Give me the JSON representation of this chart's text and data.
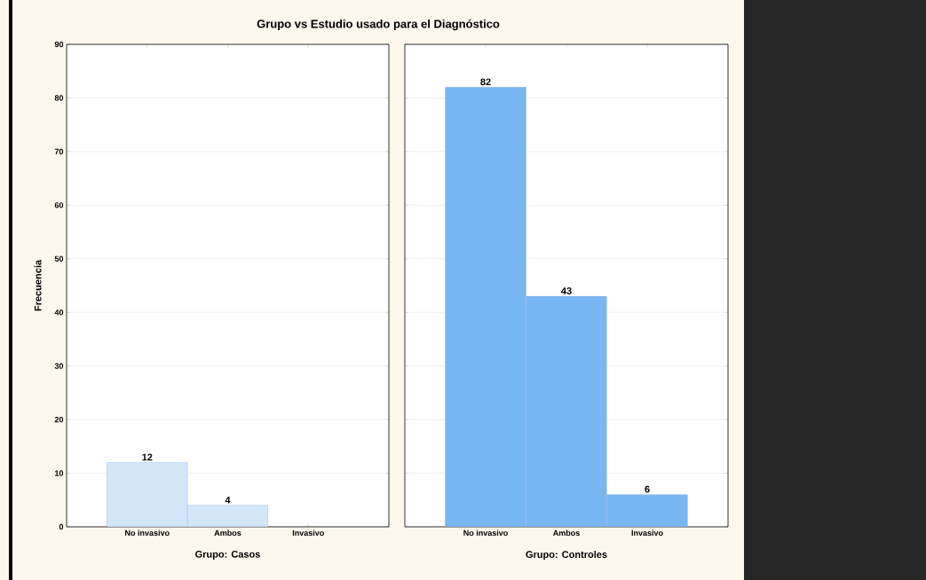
{
  "chart_data": [
    {
      "type": "bar",
      "title": "Grupo vs Estudio usado para el Diagnóstico",
      "xlabel": "Grupo: Casos",
      "ylabel": "Frecuencia",
      "categories": [
        "No invasivo",
        "Ambos",
        "Invasivo"
      ],
      "values": [
        12,
        4,
        0
      ],
      "value_labels": [
        "12",
        "4",
        null
      ],
      "color": "#d3e6fa",
      "ylim": [
        0,
        90
      ],
      "yticks": [
        0,
        10,
        20,
        30,
        40,
        50,
        60,
        70,
        80,
        90
      ],
      "grid": "y"
    },
    {
      "type": "bar",
      "xlabel": "Grupo: Controles",
      "categories": [
        "No invasivo",
        "Ambos",
        "Invasivo"
      ],
      "values": [
        82,
        43,
        6
      ],
      "data_labels": true,
      "color": "#79b7f2",
      "ylim": [
        0,
        90
      ],
      "yticks": [
        0,
        10,
        20,
        30,
        40,
        50,
        60,
        70,
        80,
        90
      ],
      "grid": "y",
      "tick_labels": "x"
    }
  ]
}
